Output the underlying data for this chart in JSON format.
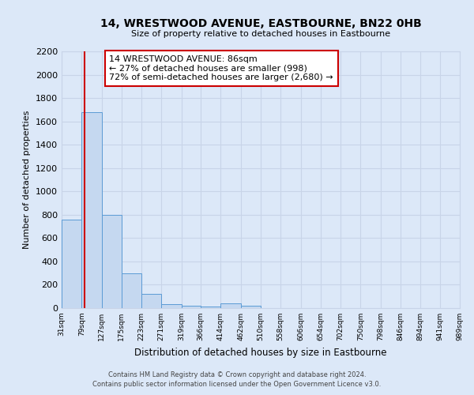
{
  "title": "14, WRESTWOOD AVENUE, EASTBOURNE, BN22 0HB",
  "subtitle": "Size of property relative to detached houses in Eastbourne",
  "xlabel": "Distribution of detached houses by size in Eastbourne",
  "ylabel": "Number of detached properties",
  "bin_edges": [
    31,
    79,
    127,
    175,
    223,
    271,
    319,
    366,
    414,
    462,
    510,
    558,
    606,
    654,
    702,
    750,
    798,
    846,
    894,
    941,
    989
  ],
  "bar_heights": [
    760,
    1680,
    800,
    300,
    120,
    35,
    20,
    15,
    40,
    20,
    0,
    0,
    0,
    0,
    0,
    0,
    0,
    0,
    0,
    0
  ],
  "bar_color": "#c5d8f0",
  "bar_edge_color": "#5b9bd5",
  "property_size": 86,
  "vline_color": "#cc0000",
  "annotation_text_line1": "14 WRESTWOOD AVENUE: 86sqm",
  "annotation_text_line2": "← 27% of detached houses are smaller (998)",
  "annotation_text_line3": "72% of semi-detached houses are larger (2,680) →",
  "annotation_box_color": "#ffffff",
  "annotation_box_edge": "#cc0000",
  "ylim": [
    0,
    2200
  ],
  "yticks": [
    0,
    200,
    400,
    600,
    800,
    1000,
    1200,
    1400,
    1600,
    1800,
    2000,
    2200
  ],
  "grid_color": "#c8d4e8",
  "background_color": "#dce8f8",
  "footer_line1": "Contains HM Land Registry data © Crown copyright and database right 2024.",
  "footer_line2": "Contains public sector information licensed under the Open Government Licence v3.0."
}
